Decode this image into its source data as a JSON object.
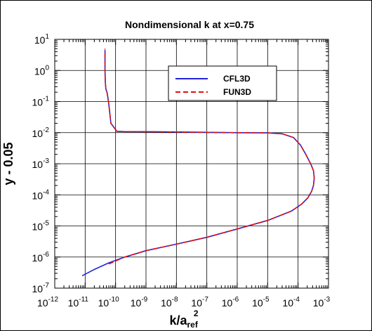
{
  "chart_data": {
    "type": "line",
    "title": "Nondimensional k at x=0.75",
    "xlabel": {
      "base": "k/a",
      "sub": "ref",
      "sup": "2"
    },
    "ylabel": "y - 0.05",
    "xscale": "log",
    "yscale": "log",
    "xlim": [
      1e-12,
      0.001
    ],
    "ylim": [
      1e-07,
      10
    ],
    "x_ticks": [
      {
        "base": "10",
        "exp": "-12"
      },
      {
        "base": "10",
        "exp": "-11"
      },
      {
        "base": "10",
        "exp": "-10"
      },
      {
        "base": "10",
        "exp": "-9"
      },
      {
        "base": "10",
        "exp": "-8"
      },
      {
        "base": "10",
        "exp": "-7"
      },
      {
        "base": "10",
        "exp": "-6"
      },
      {
        "base": "10",
        "exp": "-5"
      },
      {
        "base": "10",
        "exp": "-4"
      },
      {
        "base": "10",
        "exp": "-3"
      }
    ],
    "y_ticks": [
      {
        "base": "10",
        "exp": "-7"
      },
      {
        "base": "10",
        "exp": "-6"
      },
      {
        "base": "10",
        "exp": "-5"
      },
      {
        "base": "10",
        "exp": "-4"
      },
      {
        "base": "10",
        "exp": "-3"
      },
      {
        "base": "10",
        "exp": "-2"
      },
      {
        "base": "10",
        "exp": "-1"
      },
      {
        "base": "10",
        "exp": "0"
      },
      {
        "base": "10",
        "exp": "1"
      }
    ],
    "grid": true,
    "legend_position": "top-right",
    "series": [
      {
        "name": "CFL3D",
        "color": "#2222dd",
        "dash": "solid",
        "points": [
          [
            8e-12,
            2.5e-07
          ],
          [
            2e-11,
            4e-07
          ],
          [
            6e-11,
            6.5e-07
          ],
          [
            2e-10,
            1e-06
          ],
          [
            1e-09,
            1.6e-06
          ],
          [
            1e-08,
            2.6e-06
          ],
          [
            1e-07,
            4.3e-06
          ],
          [
            1e-06,
            8e-06
          ],
          [
            1e-05,
            1.5e-05
          ],
          [
            6e-05,
            3e-05
          ],
          [
            0.00013,
            5e-05
          ],
          [
            0.00021,
            8e-05
          ],
          [
            0.00028,
            0.00013
          ],
          [
            0.00032,
            0.0002
          ],
          [
            0.00034,
            0.00035
          ],
          [
            0.00032,
            0.0006
          ],
          [
            0.00026,
            0.001
          ],
          [
            0.00018,
            0.002
          ],
          [
            0.00012,
            0.004
          ],
          [
            7e-05,
            0.007
          ],
          [
            3e-05,
            0.0092
          ],
          [
            1e-05,
            0.0098
          ],
          [
            1e-06,
            0.01
          ],
          [
            1e-08,
            0.0105
          ],
          [
            1e-09,
            0.0107
          ],
          [
            2e-10,
            0.0108
          ],
          [
            1.1e-10,
            0.011
          ],
          [
            7e-11,
            0.02
          ],
          [
            6e-11,
            0.08
          ],
          [
            5.5e-11,
            0.15
          ],
          [
            5.2e-11,
            0.2
          ],
          [
            4.8e-11,
            0.25
          ],
          [
            4.6e-11,
            0.4
          ],
          [
            4.5e-11,
            1
          ],
          [
            4.5e-11,
            4.5
          ]
        ]
      },
      {
        "name": "FUN3D",
        "color": "#dd1111",
        "dash": "dashed",
        "points": [
          [
            6e-11,
            6e-07
          ],
          [
            2e-10,
            1e-06
          ],
          [
            1e-09,
            1.6e-06
          ],
          [
            1e-08,
            2.6e-06
          ],
          [
            1e-07,
            4.3e-06
          ],
          [
            1e-06,
            8e-06
          ],
          [
            1e-05,
            1.5e-05
          ],
          [
            6e-05,
            3e-05
          ],
          [
            0.00013,
            5e-05
          ],
          [
            0.00021,
            8e-05
          ],
          [
            0.00028,
            0.00013
          ],
          [
            0.00032,
            0.0002
          ],
          [
            0.00034,
            0.00035
          ],
          [
            0.00032,
            0.0006
          ],
          [
            0.00026,
            0.001
          ],
          [
            0.00018,
            0.002
          ],
          [
            0.00012,
            0.004
          ],
          [
            7e-05,
            0.007
          ],
          [
            3e-05,
            0.0092
          ],
          [
            1e-05,
            0.0098
          ],
          [
            1e-06,
            0.01
          ],
          [
            1e-08,
            0.0105
          ],
          [
            1e-09,
            0.0107
          ],
          [
            2e-10,
            0.0108
          ],
          [
            1.1e-10,
            0.011
          ],
          [
            7e-11,
            0.02
          ],
          [
            6e-11,
            0.08
          ],
          [
            5.5e-11,
            0.15
          ],
          [
            5.2e-11,
            0.2
          ],
          [
            4.8e-11,
            0.25
          ],
          [
            4.6e-11,
            0.4
          ],
          [
            4.5e-11,
            1
          ],
          [
            4.5e-11,
            5
          ]
        ]
      }
    ]
  }
}
